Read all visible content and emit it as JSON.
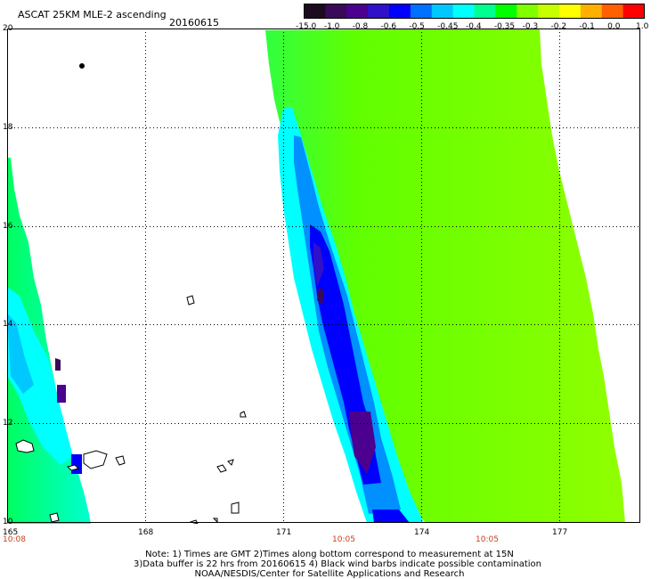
{
  "header": {
    "title": "ASCAT 25KM MLE-2 ascending",
    "date": "20160615"
  },
  "colorbar": {
    "labels": [
      "-15.0",
      "-1.0",
      "-0.8",
      "-0.6",
      "-0.5",
      "-0.45",
      "-0.4",
      "-0.35",
      "-0.3",
      "-0.2",
      "-0.1",
      "0.0",
      "1.0"
    ],
    "colors": [
      "#1e0a1e",
      "#3a0a5a",
      "#4b0090",
      "#3010c8",
      "#0000ff",
      "#0070ff",
      "#00c8ff",
      "#00ffff",
      "#00ff90",
      "#00ff00",
      "#80ff00",
      "#c8ff00",
      "#ffff00",
      "#ffb000",
      "#ff6000",
      "#ff0000"
    ]
  },
  "map": {
    "y_ticks": [
      "20",
      "18",
      "16",
      "14",
      "12",
      "10"
    ],
    "x_ticks": [
      "165",
      "168",
      "171",
      "174",
      "177"
    ],
    "times": [
      "10:08",
      "10:05",
      "10:05"
    ]
  },
  "footer": {
    "line1": "Note: 1) Times are GMT 2)Times along bottom correspond to measurement at 15N",
    "line2": "3)Data buffer is 22 hrs from 20160615 4) Black wind barbs indicate possible contamination",
    "line3": "NOAA/NESDIS/Center for Satellite Applications and Research"
  }
}
